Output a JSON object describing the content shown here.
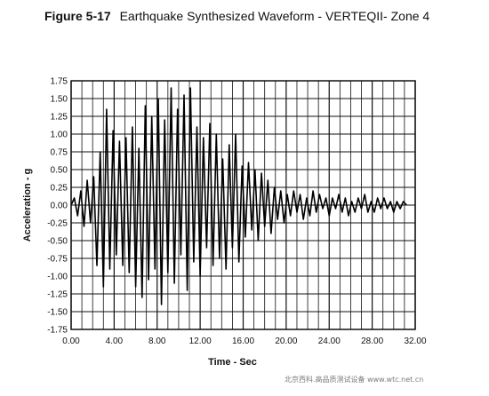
{
  "figure": {
    "number": "Figure 5-17",
    "title": "Earthquake Synthesized Waveform - VERTEQII- Zone 4"
  },
  "watermark": "北京西科.高品质测试设备 www.wtc.net.cn",
  "chart_data": {
    "type": "line",
    "title": "Earthquake Synthesized Waveform - VERTEQII- Zone 4",
    "xlabel": "Time - Sec",
    "ylabel": "Acceleration - g",
    "xlim": [
      0,
      32
    ],
    "ylim": [
      -1.75,
      1.75
    ],
    "grid": true,
    "x_tick_labels": [
      "0.00",
      "4.00",
      "8.00",
      "12.00",
      "16.00",
      "20.00",
      "24.00",
      "28.00",
      "32.00"
    ],
    "y_tick_labels": [
      "1.75",
      "1.50",
      "1.25",
      "1.00",
      "0.75",
      "0.50",
      "0.25",
      "0.00",
      "-0.25",
      "-0.50",
      "-0.75",
      "-1.00",
      "-1.25",
      "-1.50",
      "-1.75"
    ],
    "series": [
      {
        "color": "#000000",
        "x": [
          0.0,
          0.3,
          0.6,
          0.9,
          1.2,
          1.5,
          1.8,
          2.1,
          2.4,
          2.7,
          3.0,
          3.3,
          3.6,
          3.9,
          4.2,
          4.5,
          4.8,
          5.1,
          5.4,
          5.7,
          6.0,
          6.3,
          6.6,
          6.9,
          7.2,
          7.5,
          7.8,
          8.1,
          8.4,
          8.7,
          9.0,
          9.3,
          9.6,
          9.9,
          10.2,
          10.5,
          10.8,
          11.1,
          11.4,
          11.7,
          12.0,
          12.3,
          12.6,
          12.9,
          13.2,
          13.5,
          13.8,
          14.1,
          14.4,
          14.7,
          15.0,
          15.3,
          15.6,
          15.9,
          16.2,
          16.5,
          16.8,
          17.1,
          17.4,
          17.7,
          18.0,
          18.3,
          18.6,
          18.9,
          19.2,
          19.5,
          19.8,
          20.1,
          20.4,
          20.7,
          21.0,
          21.3,
          21.6,
          21.9,
          22.2,
          22.5,
          22.8,
          23.1,
          23.4,
          23.7,
          24.0,
          24.3,
          24.6,
          24.9,
          25.2,
          25.5,
          25.8,
          26.1,
          26.4,
          26.7,
          27.0,
          27.3,
          27.6,
          27.9,
          28.2,
          28.5,
          28.8,
          29.1,
          29.4,
          29.7,
          30.0,
          30.3,
          30.6,
          30.9,
          31.2
        ],
        "y": [
          0.0,
          0.1,
          -0.15,
          0.2,
          -0.3,
          0.35,
          -0.25,
          0.4,
          -0.85,
          0.75,
          -1.15,
          1.35,
          -0.9,
          1.05,
          -0.7,
          0.9,
          -0.85,
          0.95,
          -0.95,
          1.1,
          -1.15,
          0.8,
          -1.3,
          1.4,
          -1.05,
          1.25,
          -0.9,
          1.5,
          -1.4,
          1.2,
          -0.95,
          1.65,
          -1.1,
          1.35,
          -0.7,
          1.55,
          -1.2,
          1.65,
          -0.8,
          1.1,
          -1.0,
          0.95,
          -0.6,
          1.15,
          -0.85,
          1.0,
          -0.75,
          0.65,
          -0.9,
          0.85,
          -0.6,
          1.0,
          -0.8,
          0.55,
          -0.45,
          0.6,
          -0.35,
          0.5,
          -0.5,
          0.45,
          -0.3,
          0.35,
          -0.4,
          0.25,
          -0.2,
          0.2,
          -0.25,
          0.15,
          -0.15,
          0.2,
          -0.1,
          0.15,
          -0.2,
          0.1,
          -0.15,
          0.2,
          -0.1,
          0.15,
          -0.05,
          0.1,
          -0.15,
          0.1,
          -0.05,
          0.15,
          -0.1,
          0.1,
          -0.15,
          0.05,
          -0.1,
          0.1,
          -0.05,
          0.15,
          -0.1,
          0.05,
          -0.1,
          0.1,
          -0.05,
          0.1,
          -0.05,
          0.05,
          -0.1,
          0.05,
          -0.05,
          0.05,
          0.0
        ]
      }
    ]
  }
}
